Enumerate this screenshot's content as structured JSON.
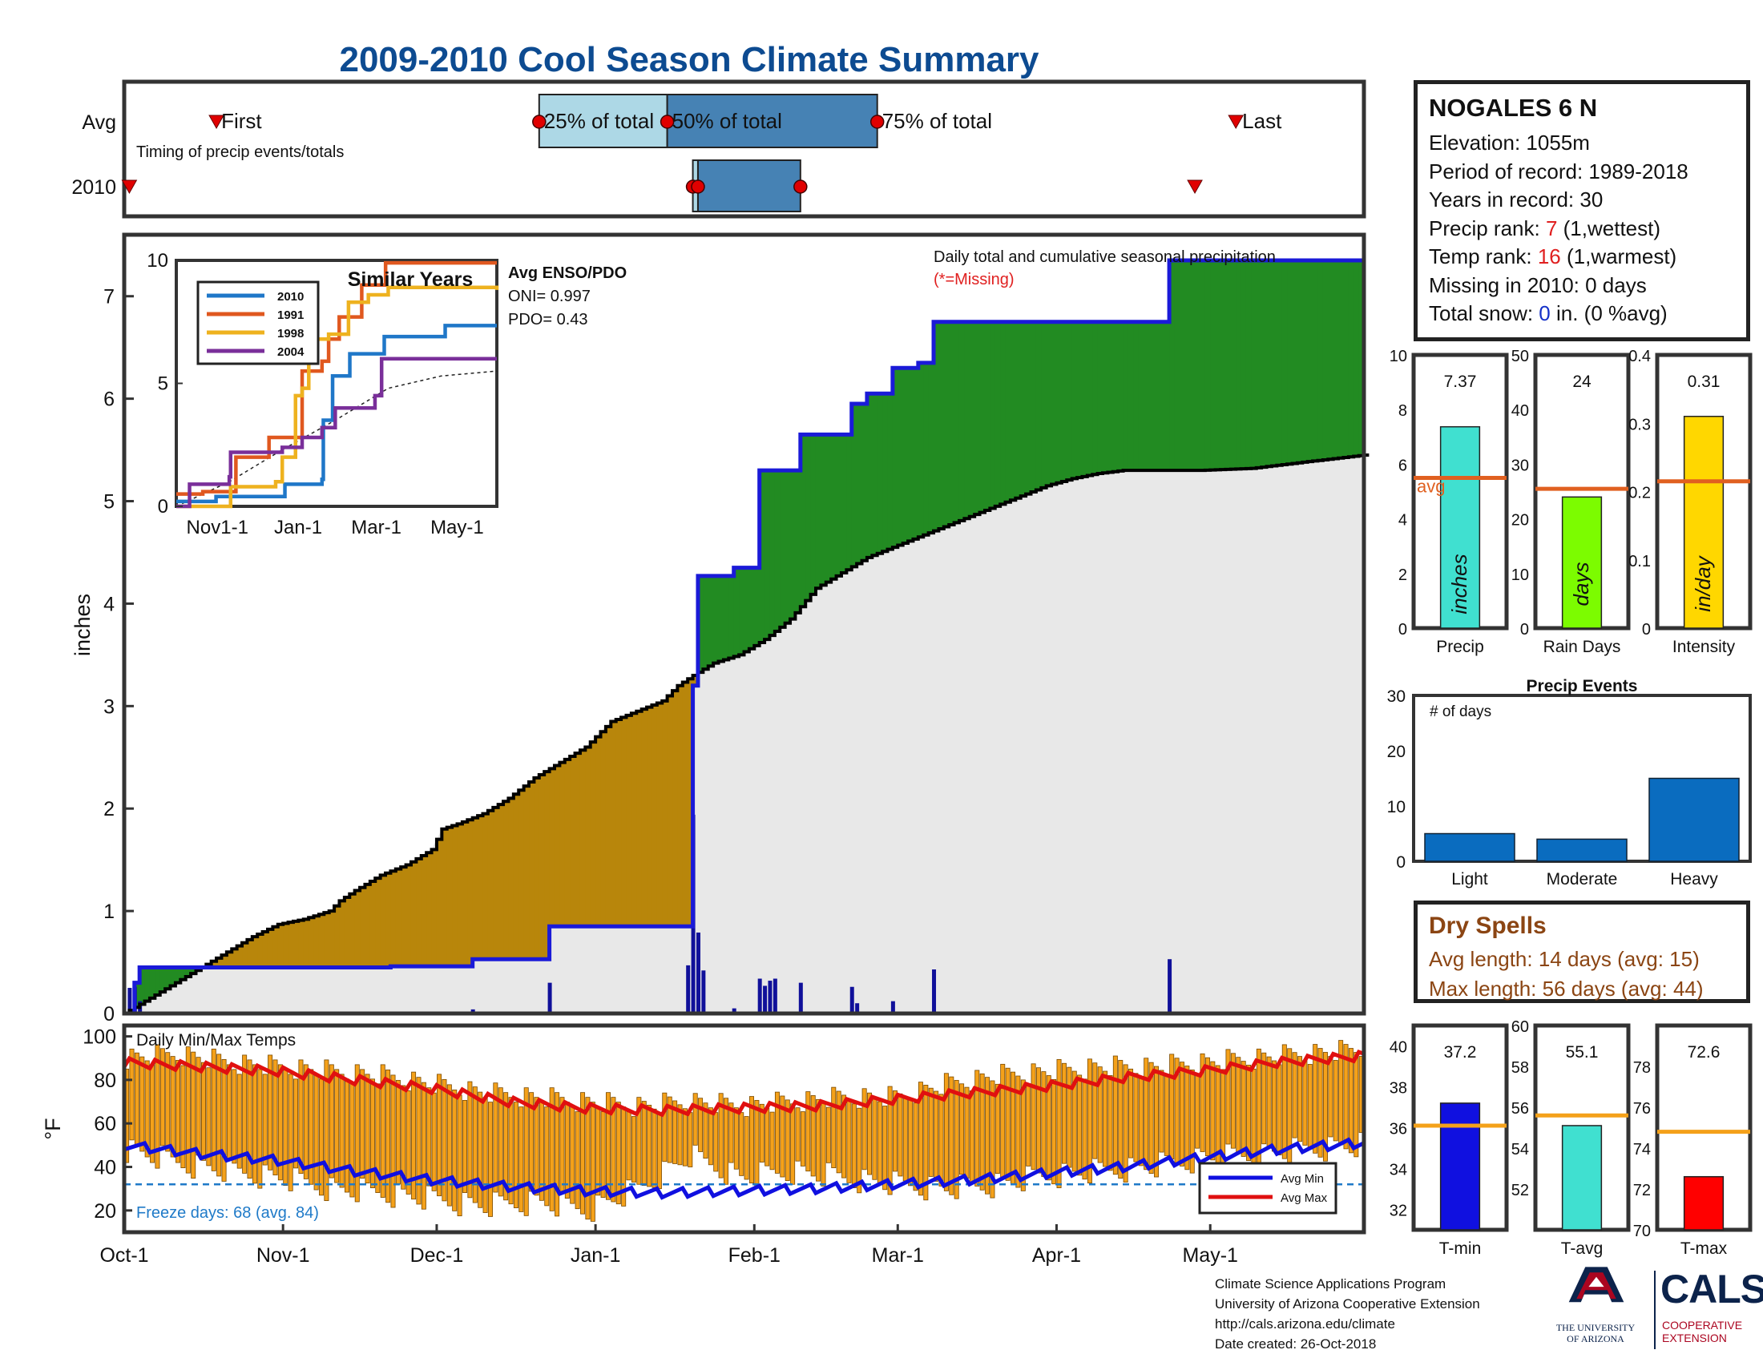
{
  "title": "2009-2010 Cool Season Climate Summary",
  "station": {
    "name": "NOGALES 6 N",
    "elevation_label": "Elevation: 1055m",
    "period_label": "Period of record: 1989-2018",
    "years_label": "Years in record: 30",
    "precip_rank_prefix": "Precip rank: ",
    "precip_rank_value": "7",
    "precip_rank_suffix": " (1,wettest)",
    "temp_rank_prefix": "Temp rank: ",
    "temp_rank_value": "16",
    "temp_rank_suffix": " (1,warmest)",
    "missing_label": "Missing in 2010: 0 days",
    "snow_prefix": "Total snow: ",
    "snow_value": "0",
    "snow_suffix": " in. (0 %avg)"
  },
  "dry_spells": {
    "title": "Dry Spells",
    "avg_length": "Avg length: 14 days (avg: 15)",
    "max_length": "Max length: 56 days (avg: 44)"
  },
  "footer": {
    "line1": "Climate Science Applications Program",
    "line2": "University of Arizona Cooperative Extension",
    "line3": "http://cals.arizona.edu/climate",
    "line4": " Date created: 26-Oct-2018",
    "ua_text_1": "THE UNIVERSITY",
    "ua_text_2": "OF ARIZONA",
    "cals_logo": "CALS",
    "cals_sub_1": "COOPERATIVE",
    "cals_sub_2": "EXTENSION"
  },
  "colors": {
    "title": "#0d4b91",
    "cumulative_line": "#1a1ad8",
    "above_avg_fill": "#228b22",
    "below_avg_fill": "#b8860b",
    "climatology_fill": "#e8e8e8",
    "tmax": "#e01010",
    "tmin": "#1010e0",
    "temp_bars": "#f4a11a",
    "avg_line_orange": "#e06020"
  },
  "chart_data": [
    {
      "type": "timeline",
      "name": "timing",
      "annotation": "Timing of precip events/totals",
      "rows": [
        "Avg",
        "2010"
      ],
      "avg": {
        "first": "Oct-19",
        "p25": "Dec-21",
        "p50": "Jan-15",
        "p75": "Feb-25",
        "last": "May-6",
        "labels": {
          "first": "First",
          "p25": "25% of total",
          "p50": "50% of total",
          "p75": "75% of total",
          "last": "Last"
        }
      },
      "y2010": {
        "first": "Oct-2",
        "p25": "Jan-20",
        "p50": "Jan-21",
        "p75": "Feb-10",
        "last": "Apr-28"
      }
    },
    {
      "type": "area",
      "name": "cumulative_precip",
      "annotation": "Daily total and cumulative seasonal precipitation",
      "missing_note": "(*=Missing)",
      "ylabel": "inches",
      "ylim": [
        0,
        7.6
      ],
      "yticks": [
        0,
        1,
        2,
        3,
        4,
        5,
        6,
        7
      ],
      "x_tick_labels": [
        "Oct-1",
        "Nov-1",
        "Dec-1",
        "Jan-1",
        "Feb-1",
        "Mar-1",
        "Apr-1",
        "May-1"
      ],
      "x_tick_days": [
        0,
        31,
        61,
        92,
        123,
        151,
        182,
        212
      ],
      "x_range_days": [
        0,
        242
      ],
      "cumulative_2010": [
        [
          0,
          0
        ],
        [
          2,
          0.3
        ],
        [
          3,
          0.45
        ],
        [
          50,
          0.45
        ],
        [
          52,
          0.46
        ],
        [
          67,
          0.46
        ],
        [
          68,
          0.53
        ],
        [
          82,
          0.53
        ],
        [
          83,
          0.85
        ],
        [
          110,
          0.85
        ],
        [
          111,
          3.2
        ],
        [
          112,
          4.27
        ],
        [
          118,
          4.27
        ],
        [
          119,
          4.35
        ],
        [
          123,
          4.35
        ],
        [
          124,
          5.3
        ],
        [
          131,
          5.3
        ],
        [
          132,
          5.65
        ],
        [
          141,
          5.65
        ],
        [
          142,
          5.95
        ],
        [
          144,
          5.95
        ],
        [
          145,
          6.05
        ],
        [
          149,
          6.05
        ],
        [
          150,
          6.3
        ],
        [
          154,
          6.3
        ],
        [
          155,
          6.35
        ],
        [
          157,
          6.35
        ],
        [
          158,
          6.75
        ],
        [
          203,
          6.75
        ],
        [
          204,
          7.35
        ],
        [
          242,
          7.35
        ]
      ],
      "cumulative_avg": [
        [
          0,
          0
        ],
        [
          5,
          0.15
        ],
        [
          10,
          0.3
        ],
        [
          15,
          0.45
        ],
        [
          20,
          0.6
        ],
        [
          25,
          0.75
        ],
        [
          30,
          0.87
        ],
        [
          35,
          0.92
        ],
        [
          40,
          1.0
        ],
        [
          42,
          1.1
        ],
        [
          45,
          1.2
        ],
        [
          50,
          1.35
        ],
        [
          55,
          1.45
        ],
        [
          60,
          1.6
        ],
        [
          62,
          1.8
        ],
        [
          65,
          1.85
        ],
        [
          70,
          1.95
        ],
        [
          75,
          2.1
        ],
        [
          80,
          2.3
        ],
        [
          85,
          2.45
        ],
        [
          90,
          2.6
        ],
        [
          95,
          2.85
        ],
        [
          100,
          2.95
        ],
        [
          105,
          3.05
        ],
        [
          108,
          3.2
        ],
        [
          111,
          3.3
        ],
        [
          115,
          3.42
        ],
        [
          120,
          3.5
        ],
        [
          125,
          3.65
        ],
        [
          130,
          3.85
        ],
        [
          135,
          4.15
        ],
        [
          140,
          4.3
        ],
        [
          145,
          4.45
        ],
        [
          150,
          4.55
        ],
        [
          155,
          4.65
        ],
        [
          160,
          4.75
        ],
        [
          165,
          4.85
        ],
        [
          170,
          4.95
        ],
        [
          175,
          5.05
        ],
        [
          180,
          5.15
        ],
        [
          185,
          5.22
        ],
        [
          190,
          5.27
        ],
        [
          195,
          5.3
        ],
        [
          200,
          5.3
        ],
        [
          210,
          5.3
        ],
        [
          220,
          5.32
        ],
        [
          230,
          5.38
        ],
        [
          242,
          5.45
        ]
      ],
      "daily_2010": [
        [
          1,
          0.25
        ],
        [
          2,
          0.26
        ],
        [
          3,
          0.12
        ],
        [
          68,
          0.04
        ],
        [
          83,
          0.3
        ],
        [
          110,
          0.47
        ],
        [
          111,
          1.94
        ],
        [
          112,
          0.79
        ],
        [
          113,
          0.42
        ],
        [
          119,
          0.05
        ],
        [
          124,
          0.34
        ],
        [
          125,
          0.27
        ],
        [
          126,
          0.32
        ],
        [
          127,
          0.34
        ],
        [
          132,
          0.3
        ],
        [
          142,
          0.26
        ],
        [
          143,
          0.1
        ],
        [
          150,
          0.12
        ],
        [
          158,
          0.43
        ],
        [
          204,
          0.53
        ]
      ]
    },
    {
      "type": "line",
      "name": "similar_years",
      "title": "Similar Years",
      "ylim": [
        0,
        10
      ],
      "yticks": [
        0,
        5,
        10
      ],
      "x_tick_labels": [
        "Nov1-1",
        "Jan-1",
        "Mar-1",
        "May-1"
      ],
      "x_tick_days": [
        31,
        92,
        151,
        212
      ],
      "series": [
        {
          "name": "2010",
          "color": "#1f77c8",
          "points": [
            [
              0,
              0.2
            ],
            [
              30,
              0.4
            ],
            [
              82,
              0.9
            ],
            [
              110,
              1.1
            ],
            [
              111,
              3.5
            ],
            [
              118,
              5.3
            ],
            [
              131,
              6.2
            ],
            [
              157,
              6.9
            ],
            [
              203,
              7.35
            ],
            [
              242,
              7.35
            ]
          ]
        },
        {
          "name": "1991",
          "color": "#e0581f",
          "points": [
            [
              0,
              0.5
            ],
            [
              20,
              0.6
            ],
            [
              45,
              2.0
            ],
            [
              70,
              2.8
            ],
            [
              95,
              5.5
            ],
            [
              110,
              5.9
            ],
            [
              115,
              6.8
            ],
            [
              123,
              7.7
            ],
            [
              140,
              9.0
            ],
            [
              158,
              9.9
            ],
            [
              242,
              9.9
            ]
          ]
        },
        {
          "name": "1998",
          "color": "#eeb21f",
          "points": [
            [
              0,
              0
            ],
            [
              40,
              0
            ],
            [
              41,
              0.8
            ],
            [
              75,
              1.0
            ],
            [
              80,
              2.0
            ],
            [
              90,
              4.5
            ],
            [
              95,
              4.8
            ],
            [
              100,
              6.8
            ],
            [
              115,
              7.0
            ],
            [
              130,
              8.3
            ],
            [
              145,
              8.6
            ],
            [
              160,
              8.9
            ],
            [
              242,
              8.8
            ]
          ]
        },
        {
          "name": "2004",
          "color": "#7a2f9a",
          "points": [
            [
              0,
              0
            ],
            [
              10,
              0.9
            ],
            [
              40,
              1.2
            ],
            [
              41,
              2.2
            ],
            [
              80,
              2.4
            ],
            [
              95,
              2.8
            ],
            [
              110,
              3.2
            ],
            [
              120,
              4.0
            ],
            [
              150,
              4.5
            ],
            [
              155,
              6.0
            ],
            [
              242,
              6.0
            ]
          ]
        }
      ],
      "avg_series": [
        [
          0,
          0
        ],
        [
          40,
          1.0
        ],
        [
          80,
          2.3
        ],
        [
          120,
          3.5
        ],
        [
          160,
          4.8
        ],
        [
          200,
          5.3
        ],
        [
          242,
          5.5
        ]
      ],
      "enso": {
        "title": "Avg ENSO/PDO",
        "oni": "ONI= 0.997",
        "pdo": "PDO= 0.43"
      }
    },
    {
      "type": "bar",
      "name": "precip_total",
      "categories": [
        "Precip"
      ],
      "values": [
        7.37
      ],
      "value_label": "7.37",
      "avg": 5.5,
      "avg_label": "avg",
      "unit_label": "inches",
      "ylim": [
        0,
        10
      ],
      "yticks": [
        0,
        2,
        4,
        6,
        8,
        10
      ],
      "bar_color": "#40e0d0"
    },
    {
      "type": "bar",
      "name": "rain_days",
      "categories": [
        "Rain Days"
      ],
      "values": [
        24
      ],
      "value_label": "24",
      "avg": 25.5,
      "unit_label": "days",
      "ylim": [
        0,
        50
      ],
      "yticks": [
        0,
        10,
        20,
        30,
        40,
        50
      ],
      "bar_color": "#7cfc00"
    },
    {
      "type": "bar",
      "name": "intensity",
      "categories": [
        "Intensity"
      ],
      "values": [
        0.31
      ],
      "value_label": "0.31",
      "avg": 0.215,
      "unit_label": "in/day",
      "ylim": [
        0,
        0.4
      ],
      "yticks": [
        0,
        0.1,
        0.2,
        0.3,
        0.4
      ],
      "bar_color": "#ffd700"
    },
    {
      "type": "bar",
      "name": "precip_events",
      "title": "Precip Events",
      "annotation": "# of days",
      "categories": [
        "Light",
        "Moderate",
        "Heavy"
      ],
      "values": [
        5,
        4,
        15
      ],
      "ylim": [
        0,
        30
      ],
      "yticks": [
        0,
        10,
        20,
        30
      ],
      "bar_color": "#0a6cbf"
    },
    {
      "type": "line",
      "name": "daily_temps",
      "annotation": "Daily Min/Max Temps",
      "ylabel": "°F",
      "ylim": [
        10,
        105
      ],
      "yticks": [
        20,
        40,
        60,
        80,
        100
      ],
      "freeze_line": 32,
      "freeze_label": "Freeze days: 68 (avg. 84)",
      "legend": [
        "Avg Min",
        "Avg Max"
      ],
      "x_tick_labels": [
        "Oct-1",
        "Nov-1",
        "Dec-1",
        "Jan-1",
        "Feb-1",
        "Mar-1",
        "Apr-1",
        "May-1"
      ],
      "x_tick_days": [
        0,
        31,
        61,
        92,
        123,
        151,
        182,
        212
      ],
      "avg_max": [
        [
          0,
          88
        ],
        [
          15,
          86
        ],
        [
          30,
          84
        ],
        [
          45,
          80
        ],
        [
          60,
          76
        ],
        [
          75,
          70
        ],
        [
          90,
          67
        ],
        [
          105,
          66
        ],
        [
          120,
          67
        ],
        [
          135,
          68
        ],
        [
          150,
          71
        ],
        [
          165,
          74
        ],
        [
          180,
          77
        ],
        [
          195,
          81
        ],
        [
          210,
          84
        ],
        [
          225,
          88
        ],
        [
          242,
          91
        ]
      ],
      "avg_min": [
        [
          0,
          50
        ],
        [
          15,
          46
        ],
        [
          30,
          43
        ],
        [
          45,
          38
        ],
        [
          60,
          34
        ],
        [
          75,
          31
        ],
        [
          90,
          29
        ],
        [
          105,
          28
        ],
        [
          120,
          29
        ],
        [
          135,
          30
        ],
        [
          150,
          32
        ],
        [
          165,
          34
        ],
        [
          180,
          37
        ],
        [
          195,
          40
        ],
        [
          210,
          44
        ],
        [
          225,
          48
        ],
        [
          242,
          51
        ]
      ],
      "daily_range_outline": [
        [
          0,
          48,
          90
        ],
        [
          10,
          42,
          92
        ],
        [
          20,
          38,
          88
        ],
        [
          30,
          35,
          86
        ],
        [
          40,
          30,
          84
        ],
        [
          50,
          28,
          82
        ],
        [
          60,
          25,
          78
        ],
        [
          70,
          22,
          74
        ],
        [
          80,
          24,
          72
        ],
        [
          90,
          20,
          70
        ],
        [
          100,
          30,
          68
        ],
        [
          110,
          45,
          70
        ],
        [
          120,
          35,
          68
        ],
        [
          130,
          38,
          70
        ],
        [
          140,
          35,
          72
        ],
        [
          150,
          32,
          72
        ],
        [
          160,
          30,
          78
        ],
        [
          170,
          32,
          82
        ],
        [
          180,
          36,
          84
        ],
        [
          190,
          38,
          86
        ],
        [
          200,
          40,
          86
        ],
        [
          210,
          44,
          88
        ],
        [
          220,
          45,
          90
        ],
        [
          230,
          48,
          92
        ],
        [
          242,
          50,
          94
        ]
      ]
    },
    {
      "type": "bar",
      "name": "tmin",
      "categories": [
        "T-min"
      ],
      "values": [
        37.2
      ],
      "value_label": "37.2",
      "avg": 36.1,
      "ylim": [
        31,
        41
      ],
      "yticks": [
        32,
        34,
        36,
        38,
        40
      ],
      "bar_color": "#1010e0"
    },
    {
      "type": "bar",
      "name": "tavg",
      "categories": [
        "T-avg"
      ],
      "values": [
        55.1
      ],
      "value_label": "55.1",
      "avg": 55.6,
      "ylim": [
        50,
        60
      ],
      "yticks": [
        52,
        54,
        56,
        58,
        60
      ],
      "bar_color": "#40e0d0"
    },
    {
      "type": "bar",
      "name": "tmax",
      "categories": [
        "T-max"
      ],
      "values": [
        72.6
      ],
      "value_label": "72.6",
      "avg": 74.8,
      "ylim": [
        70,
        80
      ],
      "yticks": [
        70,
        72,
        74,
        76,
        78
      ],
      "bar_color": "#ff0000"
    }
  ]
}
